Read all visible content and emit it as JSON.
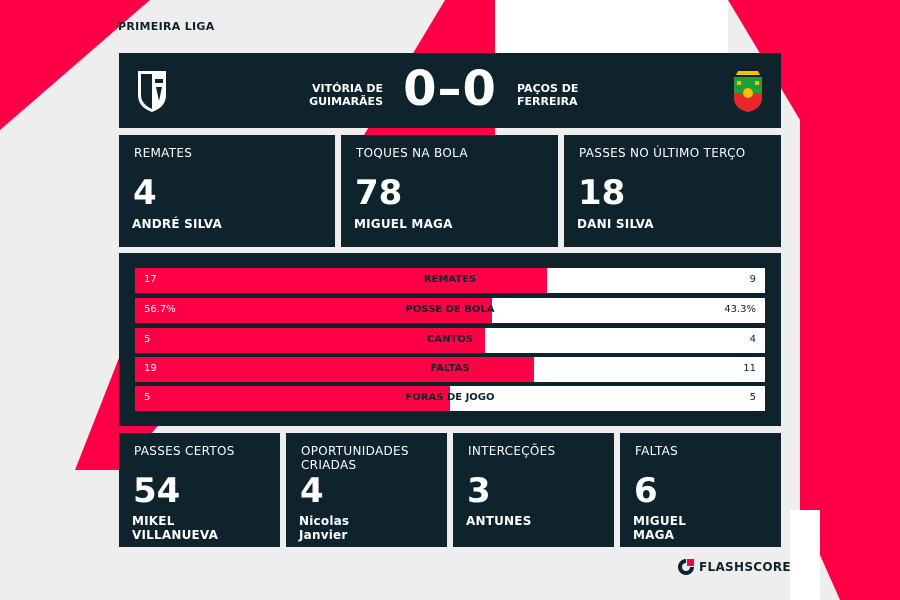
{
  "colors": {
    "accent": "#ff0046",
    "panel": "#0f232d",
    "background": "#eeeeee",
    "text": "#ffffff"
  },
  "league": "PRIMEIRA LIGA",
  "match": {
    "home_team": [
      "VITÓRIA DE",
      "GUIMARÃES"
    ],
    "away_team": [
      "PAÇOS DE",
      "FERREIRA"
    ],
    "score": "0–0",
    "home_crest_icon": "vitoria-guimaraes-crest",
    "away_crest_icon": "pacos-ferreira-crest"
  },
  "top_cards": [
    {
      "title": "REMATES",
      "value": "4",
      "player": [
        "ANDRÉ SILVA"
      ]
    },
    {
      "title": "TOQUES NA BOLA",
      "value": "78",
      "player": [
        "MIGUEL MAGA"
      ]
    },
    {
      "title": "PASSES NO ÚLTIMO TERÇO",
      "value": "18",
      "player": [
        "DANI SILVA"
      ]
    }
  ],
  "comparison_bars": [
    {
      "label": "REMATES",
      "home": "17",
      "away": "9",
      "home_share": 0.654
    },
    {
      "label": "POSSE DE BOLA",
      "home": "56.7%",
      "away": "43.3%",
      "home_share": 0.567
    },
    {
      "label": "CANTOS",
      "home": "5",
      "away": "4",
      "home_share": 0.556
    },
    {
      "label": "FALTAS",
      "home": "19",
      "away": "11",
      "home_share": 0.633
    },
    {
      "label": "FORAS DE JOGO",
      "home": "5",
      "away": "5",
      "home_share": 0.5
    }
  ],
  "bottom_cards": [
    {
      "title": [
        "PASSES CERTOS"
      ],
      "value": "54",
      "player": [
        "MIKEL",
        "VILLANUEVA"
      ]
    },
    {
      "title": [
        "OPORTUNIDADES",
        "CRIADAS"
      ],
      "value": "4",
      "player": [
        "Nicolas",
        "Janvier"
      ]
    },
    {
      "title": [
        "INTERCEÇÕES"
      ],
      "value": "3",
      "player": [
        "ANTUNES"
      ]
    },
    {
      "title": [
        "FALTAS"
      ],
      "value": "6",
      "player": [
        "MIGUEL",
        "MAGA"
      ]
    }
  ],
  "branding": {
    "logo_text": "FLASHSCORE",
    "logo_icon": "flashscore-logo-icon"
  }
}
